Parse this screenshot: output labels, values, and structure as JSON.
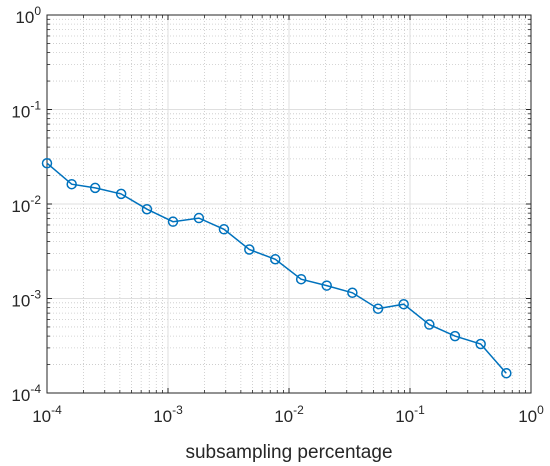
{
  "chart_data": {
    "type": "line",
    "xscale": "log",
    "yscale": "log",
    "xlim": [
      0.0001,
      1
    ],
    "ylim": [
      0.0001,
      1
    ],
    "xlabel": "subsampling percentage",
    "ylabel": "",
    "grid": true,
    "minor_grid": true,
    "x_ticks": [
      {
        "base": "10",
        "exp": "-4"
      },
      {
        "base": "10",
        "exp": "-3"
      },
      {
        "base": "10",
        "exp": "-2"
      },
      {
        "base": "10",
        "exp": "-1"
      },
      {
        "base": "10",
        "exp": "0"
      }
    ],
    "y_ticks": [
      {
        "base": "10",
        "exp": "-4"
      },
      {
        "base": "10",
        "exp": "-3"
      },
      {
        "base": "10",
        "exp": "-2"
      },
      {
        "base": "10",
        "exp": "-1"
      },
      {
        "base": "10",
        "exp": "0"
      }
    ],
    "series": [
      {
        "color": "#0072BD",
        "marker": "circle",
        "x": [
          0.0001,
          0.00016,
          0.00025,
          0.00041,
          0.00067,
          0.0011,
          0.0018,
          0.0029,
          0.0047,
          0.0077,
          0.0126,
          0.0205,
          0.0334,
          0.0544,
          0.0887,
          0.1445,
          0.2355,
          0.3838,
          0.6254
        ],
        "y": [
          0.027,
          0.0162,
          0.0148,
          0.0128,
          0.0088,
          0.0065,
          0.0071,
          0.0054,
          0.0033,
          0.0026,
          0.0016,
          0.00137,
          0.00115,
          0.00078,
          0.00087,
          0.00053,
          0.0004,
          0.00033,
          0.000162
        ]
      }
    ]
  }
}
